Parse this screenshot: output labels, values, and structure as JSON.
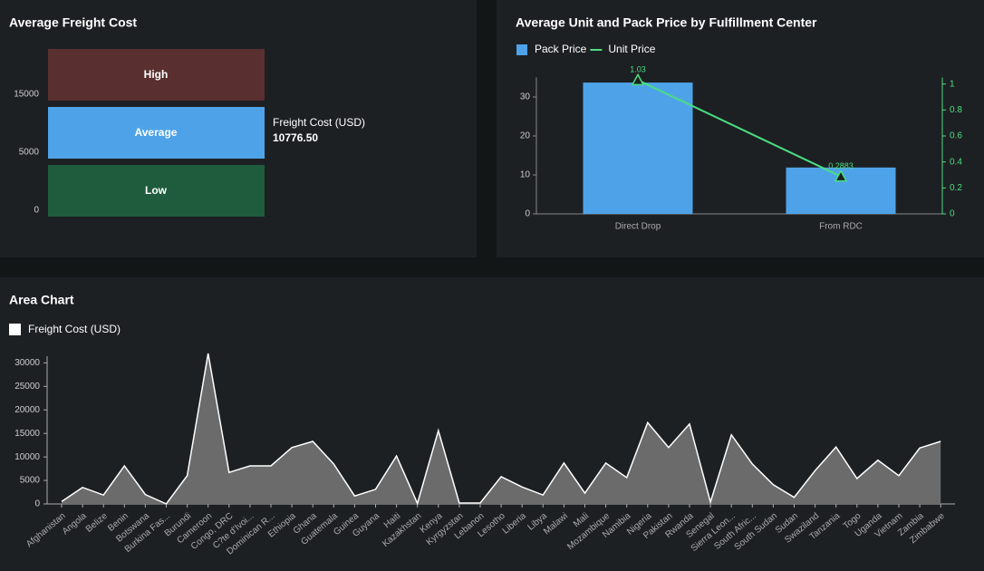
{
  "chart_data": [
    {
      "type": "band",
      "title": "Average Freight Cost",
      "bands": [
        "High",
        "Average",
        "Low"
      ],
      "band_colors": [
        "#5a2f30",
        "#4ea3e8",
        "#1f5c3e"
      ],
      "yticks": [
        0,
        5000,
        15000
      ],
      "value_name": "Freight Cost (USD)",
      "values": [
        10776.5
      ],
      "value_labels": [
        "10776.50"
      ]
    },
    {
      "type": "bar",
      "title": "Average Unit and Pack Price by Fulfillment Center",
      "categories": [
        "Direct Drop",
        "From RDC"
      ],
      "series": [
        {
          "name": "Pack Price",
          "color": "#4ea3e8",
          "values": [
            33.7,
            11.9
          ]
        },
        {
          "name": "Unit Price",
          "color": "#4ade80",
          "values": [
            1.03,
            0.2883
          ],
          "axis": "y2",
          "mark": "line"
        }
      ],
      "ylim": [
        0,
        35
      ],
      "yticks": [
        0,
        10,
        20,
        30
      ],
      "y2lim": [
        0,
        1.05
      ],
      "y2ticks": [
        0,
        0.2,
        0.4,
        0.6,
        0.8,
        1
      ]
    },
    {
      "type": "area",
      "title": "Area Chart",
      "categories": [
        "Afghanistan",
        "Angola",
        "Belize",
        "Benin",
        "Botswana",
        "Burkina Fas...",
        "Burundi",
        "Cameroon",
        "Congo, DRC",
        "C?te d'Ivoi...",
        "Dominican R...",
        "Ethiopia",
        "Ghana",
        "Guatemala",
        "Guinea",
        "Guyana",
        "Haiti",
        "Kazakhstan",
        "Kenya",
        "Kyrgyzstan",
        "Lebanon",
        "Lesotho",
        "Liberia",
        "Libya",
        "Malawi",
        "Mali",
        "Mozambique",
        "Namibia",
        "Nigeria",
        "Pakistan",
        "Rwanda",
        "Senegal",
        "Sierra Leon...",
        "South Afric...",
        "South Sudan",
        "Sudan",
        "Swaziland",
        "Tanzania",
        "Togo",
        "Uganda",
        "Vietnam",
        "Zambia",
        "Zimbabwe"
      ],
      "series": [
        {
          "name": "Freight Cost (USD)",
          "color": "#6b6b6b",
          "values": [
            500,
            3500,
            1900,
            8100,
            2000,
            0,
            6000,
            32000,
            6700,
            8100,
            8100,
            12000,
            13300,
            8500,
            1700,
            3100,
            10200,
            100,
            15600,
            200,
            200,
            5800,
            3600,
            1900,
            8700,
            2300,
            8700,
            5600,
            17300,
            12000,
            17000,
            400,
            14700,
            8500,
            4100,
            1400,
            7100,
            12100,
            5400,
            9300,
            6000,
            11900,
            13300
          ]
        }
      ],
      "ylim": [
        0,
        32000
      ],
      "yticks": [
        0,
        5000,
        10000,
        15000,
        20000,
        25000,
        30000
      ]
    }
  ]
}
